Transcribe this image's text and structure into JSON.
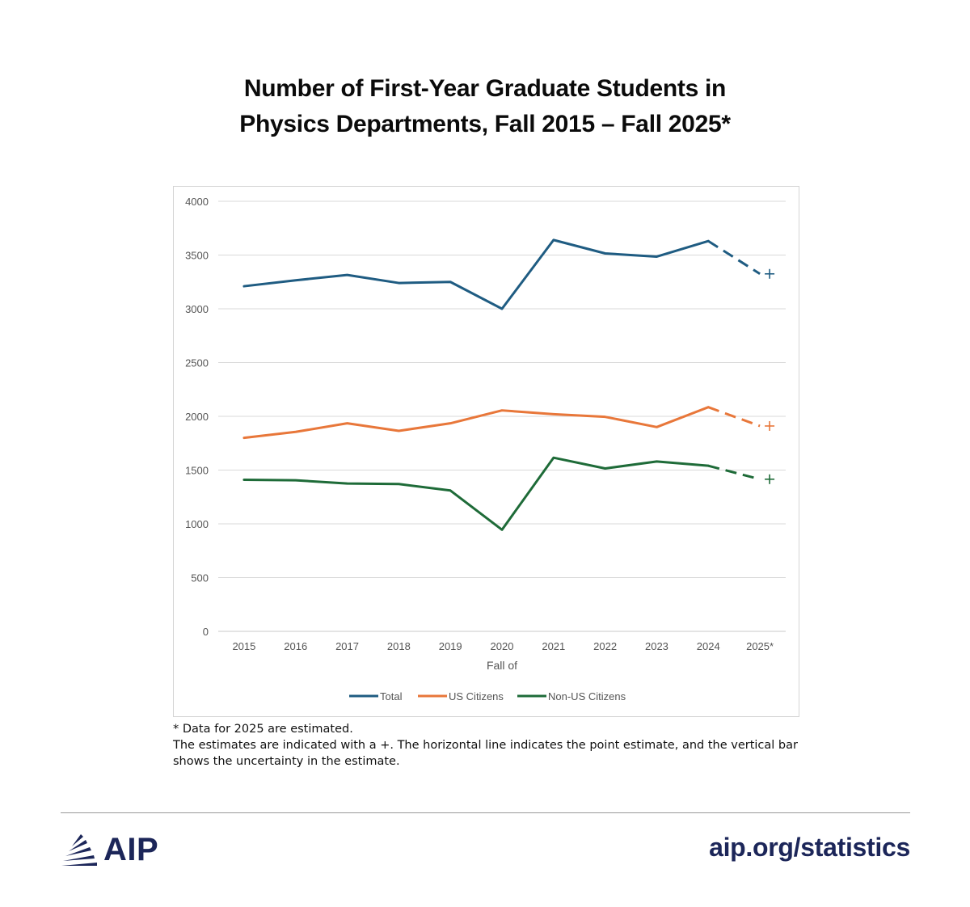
{
  "title_lines": [
    "Number of First-Year Graduate Students in",
    "Physics Departments, Fall 2015 – Fall 2025*"
  ],
  "chart_data": {
    "type": "line",
    "title": "Number of First-Year Graduate Students in Physics Departments, Fall 2015 – Fall 2025*",
    "xlabel": "Fall of",
    "ylabel": "",
    "categories": [
      "2015",
      "2016",
      "2017",
      "2018",
      "2019",
      "2020",
      "2021",
      "2022",
      "2023",
      "2024",
      "2025*"
    ],
    "ylim": [
      0,
      4000
    ],
    "yticks": [
      "0",
      "500",
      "1000",
      "1500",
      "2000",
      "2500",
      "3000",
      "3500",
      "4000"
    ],
    "grid": true,
    "legend_position": "bottom",
    "estimated_categories": [
      "2025*"
    ],
    "series": [
      {
        "name": "Total",
        "color": "#1f5c82",
        "values": [
          3210,
          3265,
          3315,
          3240,
          3250,
          3000,
          3640,
          3515,
          3485,
          3630,
          3325
        ]
      },
      {
        "name": "US Citizens",
        "color": "#e8773a",
        "values": [
          1800,
          1855,
          1935,
          1865,
          1935,
          2055,
          2020,
          1995,
          1900,
          2085,
          1910
        ]
      },
      {
        "name": "Non-US Citizens",
        "color": "#1e6b38",
        "values": [
          1410,
          1405,
          1375,
          1370,
          1310,
          945,
          1615,
          1515,
          1580,
          1540,
          1415
        ]
      }
    ]
  },
  "notes": {
    "line1": "*  Data for 2025 are estimated.",
    "line2": "The estimates are indicated with a +. The horizontal line indicates the point estimate, and the vertical bar",
    "line3": "shows the uncertainty in the estimate."
  },
  "footer": {
    "logo_text": "AIP",
    "url": "aip.org/statistics",
    "brand_color": "#1c2659"
  }
}
